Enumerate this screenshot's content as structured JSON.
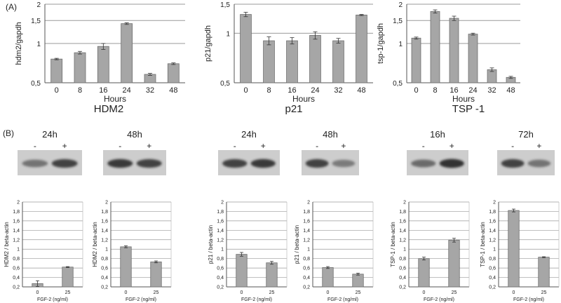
{
  "panel_labels": {
    "a": "(A)",
    "b": "(B)"
  },
  "style": {
    "bar_fill": "#a6a6a6",
    "bar_stroke": "#6e6e6e",
    "axis": "#555555",
    "grid": "#9a9a9a",
    "blot_bg": "#cdcdcd",
    "band": "#2a2a2a"
  },
  "blots": [
    {
      "time": "24h",
      "minus": "-",
      "plus": "+"
    },
    {
      "time": "48h",
      "minus": "-",
      "plus": "+"
    },
    {
      "time": "24h",
      "minus": "-",
      "plus": "+"
    },
    {
      "time": "48h",
      "minus": "-",
      "plus": "+"
    },
    {
      "time": "16h",
      "minus": "-",
      "plus": "+"
    },
    {
      "time": "72h",
      "minus": "-",
      "plus": "+"
    }
  ],
  "chart_data": [
    {
      "type": "bar",
      "title": "HDM2",
      "xlabel": "Hours",
      "ylabel": "hdm2/gapdh",
      "categories": [
        "0",
        "8",
        "16",
        "24",
        "32",
        "48"
      ],
      "values": [
        0.76,
        0.85,
        0.95,
        1.42,
        0.58,
        0.7
      ],
      "errors": [
        0.01,
        0.02,
        0.05,
        0.02,
        0.01,
        0.01
      ],
      "ylim": [
        0.5,
        2
      ],
      "yticks": [
        "0,5",
        "1",
        "1,5",
        "2"
      ],
      "ytick_values": [
        0.5,
        1,
        1.5,
        2
      ],
      "log_scale": true
    },
    {
      "type": "bar",
      "title": "p21",
      "xlabel": "Hours",
      "ylabel": "p21/gapdh",
      "categories": [
        "0",
        "8",
        "16",
        "24",
        "32",
        "48"
      ],
      "values": [
        1.3,
        0.9,
        0.9,
        0.97,
        0.9,
        1.29
      ],
      "errors": [
        0.04,
        0.05,
        0.04,
        0.05,
        0.03,
        0.01
      ],
      "ylim": [
        0.5,
        1.5
      ],
      "yticks": [
        "0,5",
        "1",
        "1,5"
      ],
      "ytick_values": [
        0.5,
        1,
        1.5
      ],
      "log_scale": true
    },
    {
      "type": "bar",
      "title": "TSP -1",
      "xlabel": "Hours",
      "ylabel": "tsp-1/gapdh",
      "categories": [
        "0",
        "8",
        "16",
        "24",
        "32",
        "48"
      ],
      "values": [
        1.1,
        1.76,
        1.56,
        1.18,
        0.63,
        0.55
      ],
      "errors": [
        0.02,
        0.05,
        0.06,
        0.02,
        0.02,
        0.01
      ],
      "ylim": [
        0.5,
        2
      ],
      "yticks": [
        "0,5",
        "1",
        "1,5",
        "2"
      ],
      "ytick_values": [
        0.5,
        1,
        1.5,
        2
      ],
      "log_scale": true
    },
    {
      "type": "bar",
      "xlabel": "FGF-2 (ng/ml)",
      "ylabel": "HDM2 / beta-actin",
      "categories": [
        "0",
        "25"
      ],
      "values": [
        0.27,
        0.62
      ],
      "errors": [
        0.06,
        0.01
      ],
      "ylim": [
        0.2,
        2
      ],
      "yticks": [
        "0,2",
        "0,4",
        "0,6",
        "0,8",
        "1",
        "1,2",
        "1,4",
        "1,6",
        "1,8",
        "2"
      ]
    },
    {
      "type": "bar",
      "xlabel": "FGF-2 (ng/ml)",
      "ylabel": "HDM2 / beta-actin",
      "categories": [
        "0",
        "25"
      ],
      "values": [
        1.05,
        0.73
      ],
      "errors": [
        0.02,
        0.02
      ],
      "ylim": [
        0.2,
        2
      ],
      "yticks": [
        "0,2",
        "0,4",
        "0,6",
        "0,8",
        "1",
        "1,2",
        "1,4",
        "1,6",
        "1,8",
        "2"
      ]
    },
    {
      "type": "bar",
      "xlabel": "FGF-2 (ng/ml)",
      "ylabel": "p21 / beta-actin",
      "categories": [
        "0",
        "25"
      ],
      "values": [
        0.89,
        0.71
      ],
      "errors": [
        0.04,
        0.03
      ],
      "ylim": [
        0.2,
        2
      ],
      "yticks": [
        "0,2",
        "0,4",
        "0,6",
        "0,8",
        "1",
        "1,2",
        "1,4",
        "1,6",
        "1,8",
        "2"
      ]
    },
    {
      "type": "bar",
      "xlabel": "FGF-2 (ng/ml)",
      "ylabel": "p21 / beta-actin",
      "categories": [
        "0",
        "25"
      ],
      "values": [
        0.61,
        0.47
      ],
      "errors": [
        0.02,
        0.02
      ],
      "ylim": [
        0.2,
        2
      ],
      "yticks": [
        "0,2",
        "0,4",
        "0,6",
        "0,8",
        "1",
        "1,2",
        "1,4",
        "1,6",
        "1,8",
        "2"
      ]
    },
    {
      "type": "bar",
      "xlabel": "FGF-2 (ng/ml)",
      "ylabel": "TSP-1 / beta-actin",
      "categories": [
        "0",
        "25"
      ],
      "values": [
        0.8,
        1.19
      ],
      "errors": [
        0.03,
        0.04
      ],
      "ylim": [
        0.2,
        2
      ],
      "yticks": [
        "0,2",
        "0,4",
        "0,6",
        "0,8",
        "1",
        "1,2",
        "1,4",
        "1,6",
        "1,8",
        "2"
      ]
    },
    {
      "type": "bar",
      "xlabel": "FGF-2 (ng/ml)",
      "ylabel": "TSP-1 / beta-actin",
      "categories": [
        "0",
        "25"
      ],
      "values": [
        1.82,
        0.83
      ],
      "errors": [
        0.03,
        0.01
      ],
      "ylim": [
        0.2,
        2
      ],
      "yticks": [
        "0,2",
        "0,4",
        "0,6",
        "0,8",
        "1",
        "1,2",
        "1,4",
        "1,6",
        "1,8",
        "2"
      ]
    }
  ]
}
